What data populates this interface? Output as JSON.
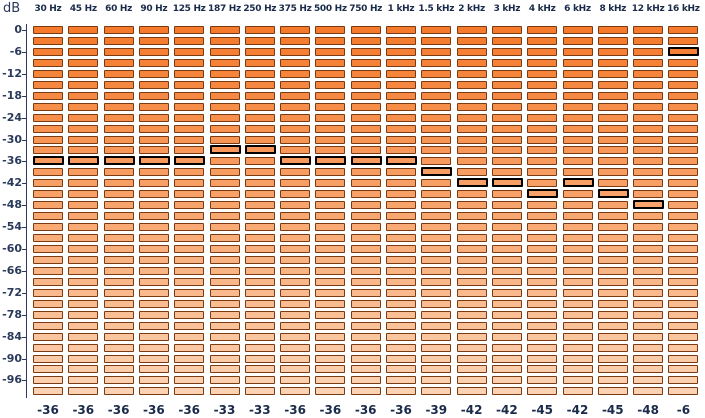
{
  "axis": {
    "unit": "dB",
    "labels": [
      "0",
      "-6",
      "-12",
      "-18",
      "-24",
      "-30",
      "-36",
      "-42",
      "-48",
      "-54",
      "-60",
      "-66",
      "-72",
      "-78",
      "-84",
      "-90",
      "-96"
    ]
  },
  "bands": [
    {
      "label": "30 Hz",
      "peak_db": -36,
      "readout": "-36"
    },
    {
      "label": "45 Hz",
      "peak_db": -36,
      "readout": "-36"
    },
    {
      "label": "60 Hz",
      "peak_db": -36,
      "readout": "-36"
    },
    {
      "label": "90 Hz",
      "peak_db": -36,
      "readout": "-36"
    },
    {
      "label": "125 Hz",
      "peak_db": -36,
      "readout": "-36"
    },
    {
      "label": "187 Hz",
      "peak_db": -33,
      "readout": "-33"
    },
    {
      "label": "250 Hz",
      "peak_db": -33,
      "readout": "-33"
    },
    {
      "label": "375 Hz",
      "peak_db": -36,
      "readout": "-36"
    },
    {
      "label": "500 Hz",
      "peak_db": -36,
      "readout": "-36"
    },
    {
      "label": "750 Hz",
      "peak_db": -36,
      "readout": "-36"
    },
    {
      "label": "1 kHz",
      "peak_db": -36,
      "readout": "-36"
    },
    {
      "label": "1.5 kHz",
      "peak_db": -39,
      "readout": "-39"
    },
    {
      "label": "2 kHz",
      "peak_db": -42,
      "readout": "-42"
    },
    {
      "label": "3 kHz",
      "peak_db": -42,
      "readout": "-42"
    },
    {
      "label": "4 kHz",
      "peak_db": -45,
      "readout": "-45"
    },
    {
      "label": "6 kHz",
      "peak_db": -42,
      "readout": "-42"
    },
    {
      "label": "8 kHz",
      "peak_db": -45,
      "readout": "-45"
    },
    {
      "label": "12 kHz",
      "peak_db": -48,
      "readout": "-48"
    },
    {
      "label": "16 kHz",
      "peak_db": -6,
      "readout": "-6"
    }
  ],
  "meter": {
    "segment_count": 34,
    "db_per_segment": 3,
    "color_top": "#f57a2c",
    "color_bottom": "#fcd2b2",
    "peak_color": "#000000"
  }
}
